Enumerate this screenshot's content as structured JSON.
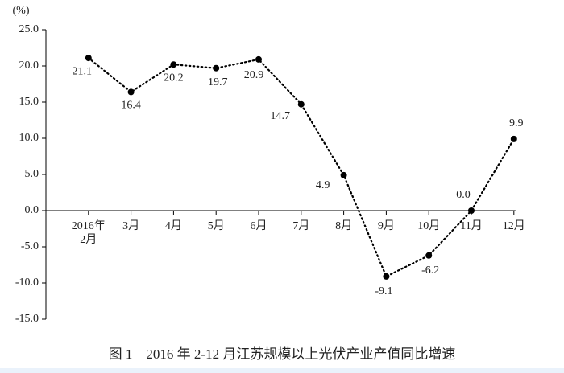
{
  "chart_data": {
    "type": "line",
    "title": "图 1　2016 年 2-12 月江苏规模以上光伏产业产值同比增速",
    "y_label": "(%)",
    "categories": [
      "2016年2月",
      "3月",
      "4月",
      "5月",
      "6月",
      "7月",
      "8月",
      "9月",
      "10月",
      "11月",
      "12月"
    ],
    "series": [
      {
        "name": "同比增速",
        "color": "#000000",
        "values": [
          21.1,
          16.4,
          20.2,
          19.7,
          20.9,
          14.7,
          4.9,
          -9.1,
          -6.2,
          0.0,
          9.9
        ],
        "value_labels": [
          "21.1",
          "16.4",
          "20.2",
          "19.7",
          "20.9",
          "14.7",
          "4.9",
          "-9.1",
          "-6.2",
          "0.0",
          "9.9"
        ]
      }
    ],
    "ylim": [
      -15,
      25
    ],
    "yticks": [
      {
        "value": -15,
        "label": "-15.0"
      },
      {
        "value": -10,
        "label": "-10.0"
      },
      {
        "value": -5,
        "label": "-5.0"
      },
      {
        "value": 0,
        "label": "0.0"
      },
      {
        "value": 5,
        "label": "5.0"
      },
      {
        "value": 10,
        "label": "10.0"
      },
      {
        "value": 15,
        "label": "15.0"
      },
      {
        "value": 20,
        "label": "20.0"
      },
      {
        "value": 25,
        "label": "25.0"
      }
    ],
    "line_style": "dotted"
  }
}
